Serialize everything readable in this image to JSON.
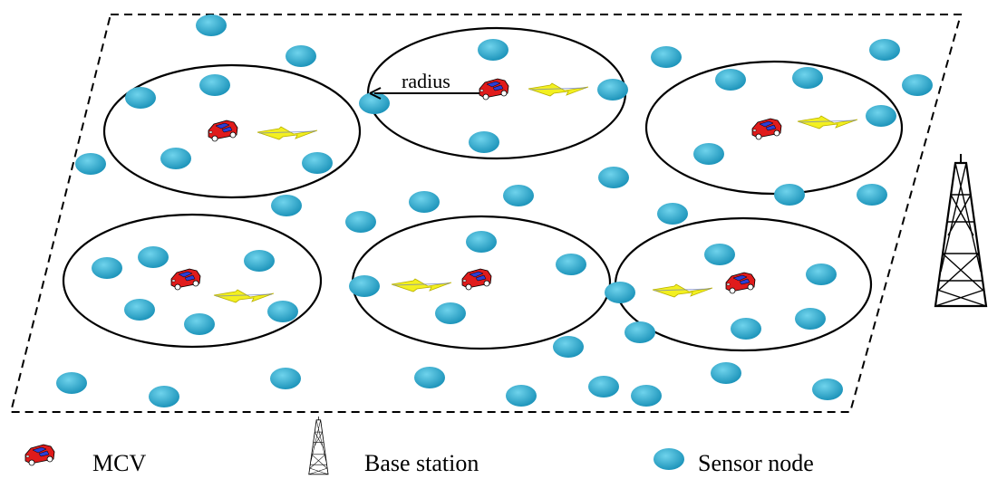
{
  "diagram": {
    "radius_label": "radius",
    "colors": {
      "sensor_fill": "#2aa7c9",
      "sensor_highlight": "#5fcbe6",
      "car_body": "#e01b1b",
      "car_window": "#2b3fd6",
      "lightning": "#f3f020",
      "lightning_stroke": "#b8b000",
      "outline": "#000000"
    }
  },
  "legend": {
    "mcv_label": "MCV",
    "base_station_label": "Base station",
    "sensor_node_label": "Sensor node"
  }
}
